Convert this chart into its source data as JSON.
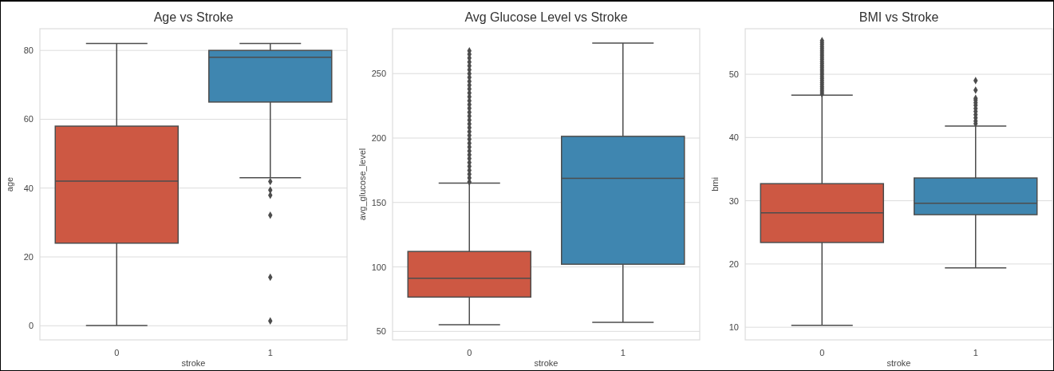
{
  "chart_data": [
    {
      "type": "box",
      "title": "Age vs Stroke",
      "xlabel": "stroke",
      "ylabel": "age",
      "categories": [
        "0",
        "1"
      ],
      "colors": [
        "#cd5843",
        "#3f86b0"
      ],
      "ylim": [
        -4.1,
        86.3
      ],
      "yticks": [
        0,
        20,
        40,
        60,
        80
      ],
      "grid": "y",
      "marker": "diamond",
      "boxes": [
        {
          "low": 0.1,
          "q1": 24,
          "median": 42,
          "q3": 58,
          "high": 82
        },
        {
          "low": 43,
          "q1": 65,
          "median": 78,
          "q3": 80,
          "high": 82,
          "outliers": [
            41.9,
            39.4,
            37.9,
            32.1,
            14.1,
            1.4
          ]
        }
      ]
    },
    {
      "type": "box",
      "title": "Avg Glucose Level vs Stroke",
      "xlabel": "stroke",
      "ylabel": "avg_glucose_level",
      "categories": [
        "0",
        "1"
      ],
      "colors": [
        "#cd5843",
        "#3f86b0"
      ],
      "ylim": [
        43.4,
        284.8
      ],
      "yticks": [
        50,
        100,
        150,
        200,
        250
      ],
      "grid": "y",
      "marker": "diamond",
      "boxes": [
        {
          "low": 55.1,
          "q1": 76.6,
          "median": 91.2,
          "q3": 112,
          "high": 165,
          "outliers": [
            166,
            169,
            172,
            175,
            178,
            181,
            184,
            187,
            190,
            193,
            196,
            199,
            202,
            205,
            208,
            211,
            214,
            217,
            220,
            223,
            226,
            229,
            232,
            235,
            238,
            241,
            244,
            247,
            250,
            253,
            256,
            259,
            262,
            265,
            267.7
          ]
        },
        {
          "low": 57,
          "q1": 102.1,
          "median": 168.8,
          "q3": 201.3,
          "high": 273.7
        }
      ]
    },
    {
      "type": "box",
      "title": "BMI vs Stroke",
      "xlabel": "stroke",
      "ylabel": "bmi",
      "categories": [
        "0",
        "1"
      ],
      "colors": [
        "#cd5843",
        "#3f86b0"
      ],
      "ylim": [
        8.0,
        57.2
      ],
      "yticks": [
        10,
        20,
        30,
        40,
        50
      ],
      "grid": "y",
      "marker": "diamond",
      "boxes": [
        {
          "low": 10.3,
          "q1": 23.4,
          "median": 28.1,
          "q3": 32.7,
          "high": 46.7,
          "outliers": [
            46.9,
            47.2,
            47.5,
            47.8,
            48.1,
            48.4,
            48.7,
            49,
            49.3,
            49.6,
            49.9,
            50.2,
            50.5,
            50.8,
            51.1,
            51.4,
            51.7,
            52,
            52.3,
            52.6,
            52.9,
            53.2,
            53.5,
            53.8,
            54.1,
            54.4,
            54.7,
            55,
            55.3
          ]
        },
        {
          "low": 19.4,
          "q1": 27.8,
          "median": 29.6,
          "q3": 33.6,
          "high": 41.8,
          "outliers": [
            42.2,
            42.6,
            43.1,
            43.6,
            44.1,
            44.6,
            45.1,
            45.5,
            45.9,
            46.2,
            47.5,
            49.0
          ]
        }
      ]
    }
  ]
}
